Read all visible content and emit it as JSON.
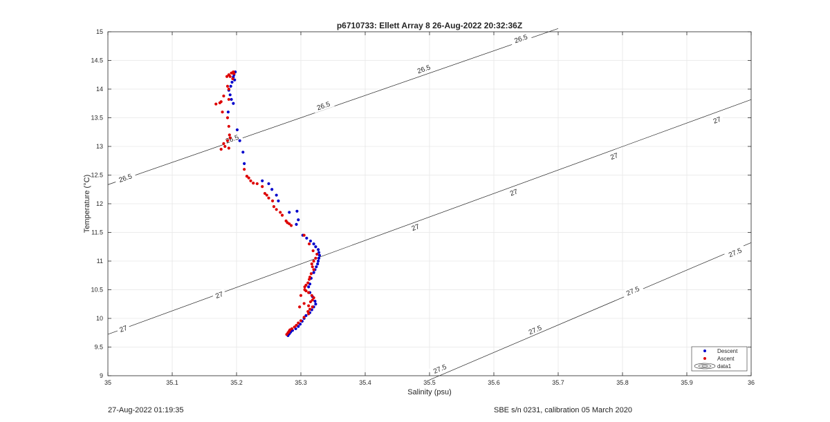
{
  "chart_data": {
    "type": "scatter",
    "title": "p6710733: Ellett Array 8 26-Aug-2022 20:32:36Z",
    "xlabel": "Salinity (psu)",
    "ylabel": "Temperature (°C)",
    "xlim": [
      35,
      36
    ],
    "ylim": [
      9,
      15
    ],
    "xticks": [
      "35",
      "35.1",
      "35.2",
      "35.3",
      "35.4",
      "35.5",
      "35.6",
      "35.7",
      "35.8",
      "35.9",
      "36"
    ],
    "yticks": [
      "9",
      "9.5",
      "10",
      "10.5",
      "11",
      "11.5",
      "12",
      "12.5",
      "13",
      "13.5",
      "14",
      "14.5",
      "15"
    ],
    "grid": true,
    "legend_position": "bottom-right",
    "legend": [
      "Descent",
      "Ascent",
      "data1"
    ],
    "contours": [
      {
        "level": "26.5",
        "x": [
          35,
          35.7
        ],
        "y": [
          12.333,
          15.057
        ]
      },
      {
        "level": "27",
        "x": [
          35,
          36
        ],
        "y": [
          9.722,
          13.817
        ]
      },
      {
        "level": "27.5",
        "x": [
          35.5,
          36
        ],
        "y": [
          8.927,
          11.322
        ]
      }
    ],
    "contour_labels": [
      {
        "text": "26.5",
        "x": 35.027,
        "y": 12.45
      },
      {
        "text": "26.5",
        "x": 35.193,
        "y": 13.13
      },
      {
        "text": "26.5",
        "x": 35.335,
        "y": 13.71
      },
      {
        "text": "26.5",
        "x": 35.491,
        "y": 14.35
      },
      {
        "text": "26.5",
        "x": 35.642,
        "y": 14.88
      },
      {
        "text": "27",
        "x": 35.024,
        "y": 9.82
      },
      {
        "text": "27",
        "x": 35.173,
        "y": 10.41
      },
      {
        "text": "27",
        "x": 35.478,
        "y": 11.59
      },
      {
        "text": "27",
        "x": 35.631,
        "y": 12.2
      },
      {
        "text": "27",
        "x": 35.787,
        "y": 12.83
      },
      {
        "text": "27",
        "x": 35.947,
        "y": 13.46
      },
      {
        "text": "27.5",
        "x": 35.516,
        "y": 9.12
      },
      {
        "text": "27.5",
        "x": 35.664,
        "y": 9.8
      },
      {
        "text": "27.5",
        "x": 35.816,
        "y": 10.48
      },
      {
        "text": "27.5",
        "x": 35.975,
        "y": 11.15
      }
    ],
    "series": [
      {
        "name": "Descent",
        "color": "#0000cc",
        "points": [
          [
            35.198,
            14.3
          ],
          [
            35.196,
            14.25
          ],
          [
            35.195,
            14.21
          ],
          [
            35.197,
            14.16
          ],
          [
            35.193,
            14.12
          ],
          [
            35.191,
            14.05
          ],
          [
            35.188,
            13.98
          ],
          [
            35.19,
            13.9
          ],
          [
            35.192,
            13.82
          ],
          [
            35.195,
            13.75
          ],
          [
            35.187,
            13.6
          ],
          [
            35.201,
            13.29
          ],
          [
            35.205,
            13.1
          ],
          [
            35.21,
            12.9
          ],
          [
            35.212,
            12.7
          ],
          [
            35.24,
            12.4
          ],
          [
            35.25,
            12.35
          ],
          [
            35.255,
            12.25
          ],
          [
            35.262,
            12.15
          ],
          [
            35.265,
            12.05
          ],
          [
            35.282,
            11.85
          ],
          [
            35.294,
            11.87
          ],
          [
            35.296,
            11.72
          ],
          [
            35.293,
            11.64
          ],
          [
            35.303,
            11.45
          ],
          [
            35.309,
            11.4
          ],
          [
            35.315,
            11.35
          ],
          [
            35.32,
            11.3
          ],
          [
            35.323,
            11.25
          ],
          [
            35.327,
            11.2
          ],
          [
            35.328,
            11.15
          ],
          [
            35.329,
            11.1
          ],
          [
            35.328,
            11.05
          ],
          [
            35.327,
            11.0
          ],
          [
            35.326,
            10.95
          ],
          [
            35.324,
            10.9
          ],
          [
            35.322,
            10.85
          ],
          [
            35.32,
            10.8
          ],
          [
            35.316,
            10.7
          ],
          [
            35.314,
            10.6
          ],
          [
            35.312,
            10.55
          ],
          [
            35.314,
            10.45
          ],
          [
            35.318,
            10.38
          ],
          [
            35.322,
            10.3
          ],
          [
            35.323,
            10.25
          ],
          [
            35.32,
            10.2
          ],
          [
            35.317,
            10.15
          ],
          [
            35.314,
            10.1
          ],
          [
            35.308,
            10.05
          ],
          [
            35.305,
            10.0
          ],
          [
            35.302,
            9.95
          ],
          [
            35.299,
            9.9
          ],
          [
            35.296,
            9.86
          ],
          [
            35.292,
            9.82
          ],
          [
            35.287,
            9.79
          ],
          [
            35.284,
            9.76
          ],
          [
            35.282,
            9.73
          ],
          [
            35.28,
            9.7
          ]
        ]
      },
      {
        "name": "Ascent",
        "color": "#dd0000",
        "points": [
          [
            35.195,
            14.3
          ],
          [
            35.192,
            14.28
          ],
          [
            35.188,
            14.25
          ],
          [
            35.185,
            14.22
          ],
          [
            35.19,
            14.22
          ],
          [
            35.196,
            14.27
          ],
          [
            35.194,
            14.18
          ],
          [
            35.186,
            14.05
          ],
          [
            35.188,
            14.0
          ],
          [
            35.18,
            13.88
          ],
          [
            35.188,
            13.82
          ],
          [
            35.176,
            13.78
          ],
          [
            35.174,
            13.76
          ],
          [
            35.168,
            13.74
          ],
          [
            35.178,
            13.6
          ],
          [
            35.186,
            13.5
          ],
          [
            35.188,
            13.35
          ],
          [
            35.189,
            13.2
          ],
          [
            35.19,
            13.15
          ],
          [
            35.186,
            13.1
          ],
          [
            35.18,
            13.05
          ],
          [
            35.182,
            13.0
          ],
          [
            35.176,
            12.95
          ],
          [
            35.188,
            12.97
          ],
          [
            35.212,
            12.6
          ],
          [
            35.216,
            12.48
          ],
          [
            35.219,
            12.45
          ],
          [
            35.222,
            12.4
          ],
          [
            35.226,
            12.36
          ],
          [
            35.232,
            12.35
          ],
          [
            35.24,
            12.3
          ],
          [
            35.244,
            12.18
          ],
          [
            35.247,
            12.15
          ],
          [
            35.25,
            12.1
          ],
          [
            35.256,
            12.05
          ],
          [
            35.258,
            11.95
          ],
          [
            35.262,
            11.9
          ],
          [
            35.268,
            11.85
          ],
          [
            35.271,
            11.8
          ],
          [
            35.277,
            11.7
          ],
          [
            35.279,
            11.67
          ],
          [
            35.282,
            11.65
          ],
          [
            35.285,
            11.62
          ],
          [
            35.305,
            11.45
          ],
          [
            35.313,
            11.3
          ],
          [
            35.319,
            11.18
          ],
          [
            35.325,
            11.12
          ],
          [
            35.323,
            11.05
          ],
          [
            35.32,
            11.0
          ],
          [
            35.317,
            10.95
          ],
          [
            35.318,
            10.9
          ],
          [
            35.32,
            10.85
          ],
          [
            35.316,
            10.78
          ],
          [
            35.314,
            10.72
          ],
          [
            35.313,
            10.68
          ],
          [
            35.311,
            10.62
          ],
          [
            35.308,
            10.58
          ],
          [
            35.306,
            10.55
          ],
          [
            35.306,
            10.5
          ],
          [
            35.308,
            10.48
          ],
          [
            35.312,
            10.45
          ],
          [
            35.317,
            10.4
          ],
          [
            35.32,
            10.36
          ],
          [
            35.318,
            10.32
          ],
          [
            35.315,
            10.29
          ],
          [
            35.305,
            10.26
          ],
          [
            35.312,
            10.22
          ],
          [
            35.318,
            10.2
          ],
          [
            35.314,
            10.16
          ],
          [
            35.311,
            10.12
          ],
          [
            35.3,
            10.4
          ],
          [
            35.298,
            10.2
          ],
          [
            35.312,
            10.08
          ],
          [
            35.305,
            10.02
          ],
          [
            35.3,
            9.96
          ],
          [
            35.296,
            9.92
          ],
          [
            35.293,
            9.88
          ],
          [
            35.29,
            9.85
          ],
          [
            35.286,
            9.82
          ],
          [
            35.282,
            9.78
          ],
          [
            35.28,
            9.75
          ],
          [
            35.278,
            9.72
          ],
          [
            35.281,
            9.76
          ],
          [
            35.283,
            9.8
          ]
        ]
      }
    ]
  },
  "footer": {
    "timestamp": "27-Aug-2022 01:19:35",
    "calibration": "SBE s/n 0231, calibration 05 March 2020"
  }
}
